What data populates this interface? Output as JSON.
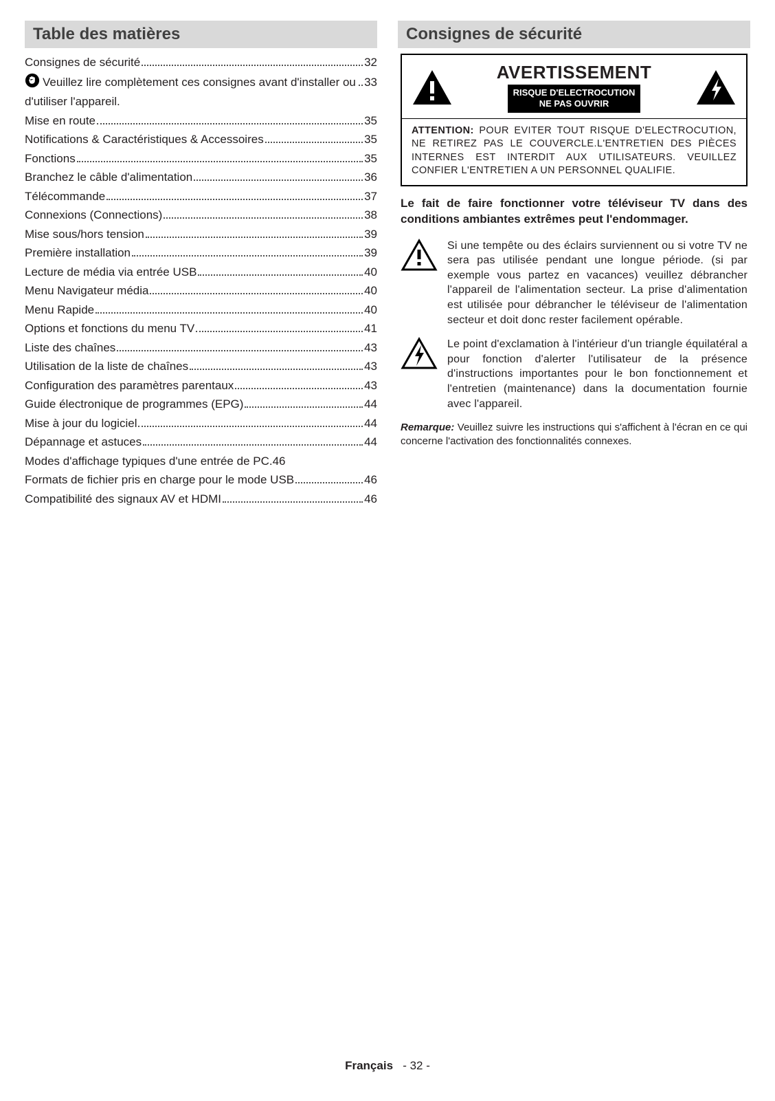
{
  "left": {
    "header": "Table des matières",
    "toc": [
      {
        "label": "Consignes de sécurité",
        "page": "32",
        "icon": null
      },
      {
        "label": "Veuillez lire complètement ces consignes avant d'installer ou d'utiliser l'appareil.",
        "page": "33",
        "icon": "hand"
      },
      {
        "label": "Mise en route",
        "page": "35",
        "icon": null
      },
      {
        "label": "Notifications & Caractéristiques & Accessoires",
        "page": "35",
        "icon": null
      },
      {
        "label": "Fonctions",
        "page": "35",
        "icon": null
      },
      {
        "label": "Branchez le câble d'alimentation ",
        "page": "36",
        "icon": null
      },
      {
        "label": "Télécommande ",
        "page": "37",
        "icon": null
      },
      {
        "label": "Connexions (Connections)",
        "page": "38",
        "icon": null
      },
      {
        "label": "Mise sous/hors tension",
        "page": "39",
        "icon": null
      },
      {
        "label": "Première installation",
        "page": "39",
        "icon": null
      },
      {
        "label": "Lecture de média via entrée USB",
        "page": "40",
        "icon": null
      },
      {
        "label": "Menu Navigateur média ",
        "page": "40",
        "icon": null
      },
      {
        "label": "Menu Rapide",
        "page": "40",
        "icon": null
      },
      {
        "label": "Options et fonctions du menu TV",
        "page": "41",
        "icon": null
      },
      {
        "label": "Liste des chaînes ",
        "page": "43",
        "icon": null
      },
      {
        "label": "Utilisation de la liste de chaînes",
        "page": "43",
        "icon": null
      },
      {
        "label": "Configuration des paramètres parentaux",
        "page": "43",
        "icon": null
      },
      {
        "label": "Guide électronique de programmes (EPG)",
        "page": "44",
        "icon": null
      },
      {
        "label": "Mise à jour du logiciel",
        "page": "44",
        "icon": null
      },
      {
        "label": "Dépannage et astuces",
        "page": "44",
        "icon": null
      },
      {
        "label": "Modes d'affichage typiques d'une entrée de PC ",
        "page": "46",
        "icon": null,
        "nodots": true
      },
      {
        "label": "Formats de fichier pris en charge pour le mode USB",
        "page": "46",
        "icon": null
      },
      {
        "label": "Compatibilité des signaux AV et HDMI ",
        "page": "46",
        "icon": null
      }
    ]
  },
  "right": {
    "header": "Consignes de sécurité",
    "warning": {
      "title": "AVERTISSEMENT",
      "sub_line1": "RISQUE D'ELECTROCUTION",
      "sub_line2": "NE PAS OUVRIR",
      "attention_label": "ATTENTION:",
      "attention_text": " POUR EVITER TOUT RISQUE D'ELECTROCUTION, NE RETIREZ PAS LE COUVERCLE.L'ENTRETIEN DES PIÈCES INTERNES EST INTERDIT AUX UTILISATEURS. VEUILLEZ CONFIER L'ENTRETIEN A UN PERSONNEL QUALIFIE."
    },
    "bold_para": "Le fait de faire fonctionner votre téléviseur TV dans des conditions ambiantes extrêmes peut l'endommager.",
    "para1": "Si une tempête ou des éclairs surviennent ou si votre TV ne sera pas utilisée pendant une longue période. (si par exemple vous partez en vacances) veuillez débrancher l'appareil de l'alimentation secteur. La prise d'alimentation est utilisée pour débrancher le téléviseur de l'alimentation secteur et doit donc rester facilement opérable.",
    "para2": "Le point d'exclamation à l'intérieur d'un triangle équilatéral a pour fonction d'alerter l'utilisateur de la présence d'instructions importantes pour le bon fonctionnement et l'entretien (maintenance) dans la documentation fournie avec l'appareil.",
    "remark_label": "Remarque:",
    "remark_text": " Veuillez suivre les instructions qui s'affichent à l'écran en ce qui concerne l'activation des fonctionnalités connexes."
  },
  "footer": {
    "lang": "Français",
    "page": "- 32 -"
  },
  "colors": {
    "header_bg": "#d9d9d9",
    "header_text": "#404040",
    "text": "#231f20",
    "black": "#000000",
    "white": "#ffffff"
  }
}
